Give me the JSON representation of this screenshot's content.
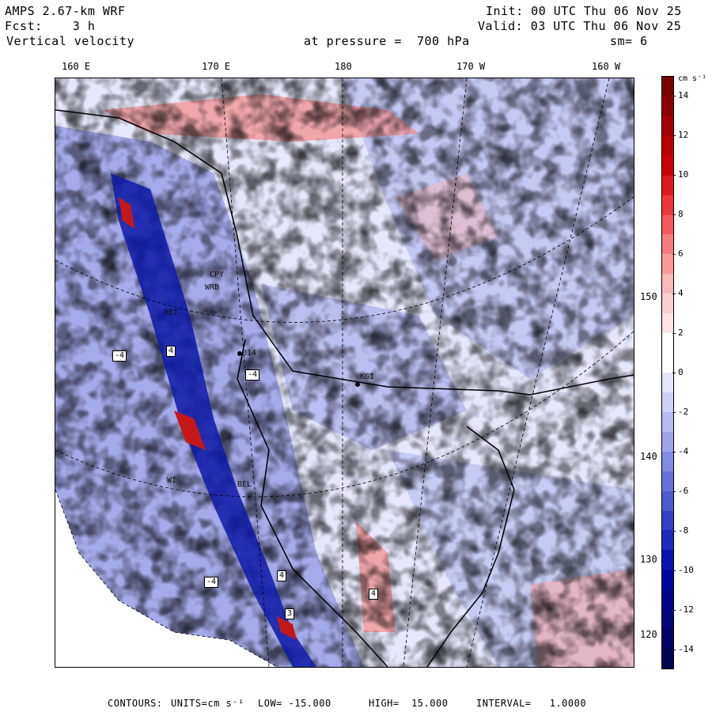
{
  "header": {
    "model": "AMPS 2.67-km WRF",
    "forecast": "Fcst:    3 h",
    "variable": "Vertical velocity",
    "init": "Init: 00 UTC Thu 06 Nov 25",
    "valid": "Valid: 03 UTC Thu 06 Nov 25",
    "level": "at pressure =  700 hPa",
    "smoothing": "sm= 6"
  },
  "lon_labels": [
    "160 E",
    "170 E",
    "180",
    "170 W",
    "160 W"
  ],
  "lat_labels": [
    "150 W",
    "140 W",
    "130 W",
    "120 W"
  ],
  "colorbar": {
    "units": "cm s⁻¹",
    "ticks": [
      "14",
      "12",
      "10",
      "8",
      "6",
      "4",
      "2",
      "0",
      "-2",
      "-4",
      "-6",
      "-8",
      "-10",
      "-12",
      "-14"
    ],
    "colors": [
      "#7a0000",
      "#8e0000",
      "#a50000",
      "#bb0000",
      "#cf0000",
      "#e01a1a",
      "#ee3838",
      "#f55858",
      "#f87a7a",
      "#f99a9a",
      "#fab8b8",
      "#fbcfcf",
      "#fde3e3",
      "#ffffff",
      "#ffffff",
      "#e4e6fb",
      "#cdd1f6",
      "#b5bbf0",
      "#9ca4ea",
      "#828be2",
      "#6971da",
      "#4f57d1",
      "#3640c8",
      "#1e29be",
      "#0b13b1",
      "#0005a0",
      "#00058c",
      "#000578",
      "#000464",
      "#000350"
    ]
  },
  "stations": [
    "CPY",
    "WRB",
    "REI",
    "B14",
    "KGI",
    "BEL",
    "WI"
  ],
  "map_boxes": [
    "-4",
    "4",
    "-4",
    "4",
    "4",
    "-4",
    "3"
  ],
  "footer": {
    "contours_label": "CONTOURS:",
    "units_label": "UNITS=cm s⁻¹",
    "low": "LOW= -15.000",
    "high": "HIGH=  15.000",
    "interval": "INTERVAL=   1.0000"
  }
}
